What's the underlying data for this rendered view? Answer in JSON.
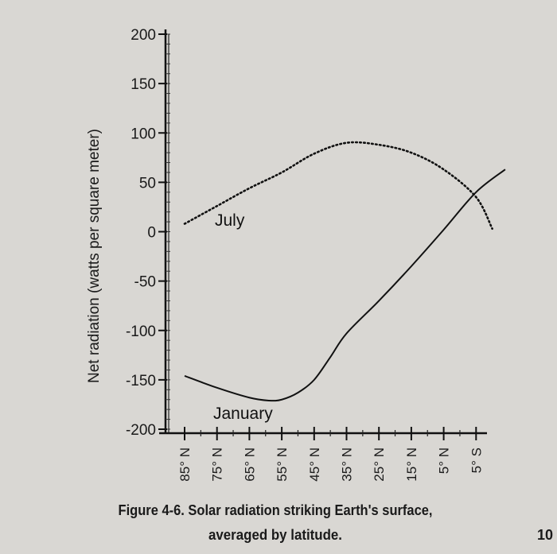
{
  "chart_data": {
    "type": "line",
    "title": "",
    "ylabel": "Net radiation (watts per square meter)",
    "xlabel": "",
    "ylim": [
      -200,
      200
    ],
    "yticks": [
      200,
      150,
      100,
      50,
      0,
      -50,
      -100,
      -150,
      -200
    ],
    "ytick_labels": [
      "200",
      "150",
      "100",
      "50",
      "0",
      "-50",
      "-100",
      "-150",
      "-200"
    ],
    "categories": [
      "85° N",
      "75° N",
      "65° N",
      "55° N",
      "45° N",
      "35° N",
      "25° N",
      "15° N",
      "5° N",
      "5° S"
    ],
    "x_index": [
      0,
      1,
      2,
      3,
      4,
      5,
      6,
      7,
      8,
      9
    ],
    "series": [
      {
        "name": "July",
        "style": "dotted",
        "x": [
          0,
          1,
          2,
          3,
          4,
          5,
          6,
          7,
          8,
          9,
          9.5
        ],
        "values": [
          8,
          26,
          44,
          60,
          79,
          90,
          88,
          80,
          63,
          35,
          3
        ]
      },
      {
        "name": "January",
        "style": "solid",
        "x": [
          0,
          1,
          2,
          2.6,
          3,
          3.5,
          4,
          4.5,
          5,
          6,
          7,
          8,
          9,
          9.9
        ],
        "values": [
          -146,
          -158,
          -168,
          -171,
          -170,
          -163,
          -150,
          -127,
          -103,
          -70,
          -35,
          2,
          40,
          63
        ]
      }
    ],
    "caption_line1": "Figure 4-6. Solar radiation striking Earth's surface,",
    "caption_line2": "averaged by latitude.",
    "page_number": "10"
  }
}
